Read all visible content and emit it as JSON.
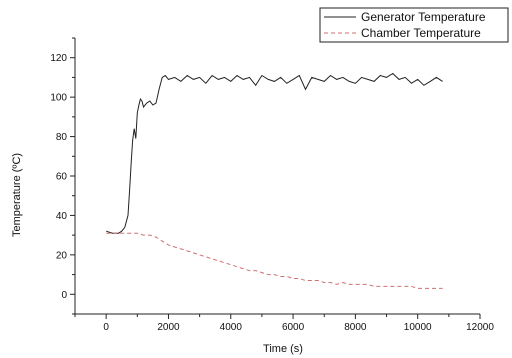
{
  "chart_data": {
    "type": "line",
    "xlabel": "Time (s)",
    "ylabel": "Temperature (ºC)",
    "xlim": [
      -1000,
      12000
    ],
    "ylim": [
      -10,
      130
    ],
    "xticks": [
      0,
      2000,
      4000,
      6000,
      8000,
      10000,
      12000
    ],
    "yticks": [
      0,
      20,
      40,
      60,
      80,
      100,
      120
    ],
    "grid": false,
    "legend_position": "top-right",
    "series": [
      {
        "name": "Generator Temperature",
        "color": "#222222",
        "dash": "solid",
        "x": [
          0,
          200,
          400,
          500,
          600,
          700,
          750,
          800,
          850,
          900,
          950,
          1000,
          1050,
          1100,
          1150,
          1200,
          1300,
          1400,
          1500,
          1600,
          1700,
          1800,
          1900,
          2000,
          2200,
          2400,
          2600,
          2800,
          3000,
          3200,
          3400,
          3600,
          3800,
          4000,
          4200,
          4400,
          4600,
          4800,
          5000,
          5200,
          5400,
          5600,
          5800,
          6000,
          6200,
          6400,
          6600,
          6800,
          7000,
          7200,
          7400,
          7600,
          7800,
          8000,
          8200,
          8400,
          8600,
          8800,
          9000,
          9200,
          9400,
          9600,
          9800,
          10000,
          10200,
          10400,
          10600,
          10800
        ],
        "y": [
          32,
          31,
          31,
          32,
          34,
          40,
          52,
          66,
          78,
          84,
          79,
          92,
          96,
          99,
          98,
          95,
          97,
          98,
          96,
          97,
          104,
          110,
          111,
          109,
          110,
          108,
          111,
          109,
          110,
          107,
          111,
          109,
          110,
          108,
          111,
          109,
          110,
          106,
          111,
          109,
          108,
          110,
          107,
          109,
          111,
          104,
          110,
          109,
          108,
          111,
          109,
          110,
          108,
          107,
          110,
          109,
          108,
          111,
          110,
          112,
          109,
          110,
          107,
          109,
          106,
          108,
          110,
          108
        ]
      },
      {
        "name": "Chamber Temperature",
        "color": "#d07070",
        "dash": "dashed",
        "x": [
          0,
          200,
          400,
          600,
          800,
          1000,
          1200,
          1400,
          1600,
          1800,
          2000,
          2200,
          2400,
          2600,
          2800,
          3000,
          3200,
          3400,
          3600,
          3800,
          4000,
          4200,
          4400,
          4600,
          4800,
          5000,
          5200,
          5400,
          5600,
          5800,
          6000,
          6200,
          6400,
          6600,
          6800,
          7000,
          7200,
          7400,
          7600,
          7800,
          8000,
          8200,
          8400,
          8600,
          8800,
          9000,
          9200,
          9400,
          9600,
          9800,
          10000,
          10200,
          10400,
          10600,
          10800
        ],
        "y": [
          31,
          31,
          31,
          31,
          31,
          31,
          30,
          30,
          29,
          27,
          25,
          24,
          23,
          22,
          21,
          20,
          19,
          18,
          17,
          16,
          15,
          14,
          13,
          12,
          12,
          11,
          10,
          10,
          9,
          9,
          8,
          8,
          7,
          7,
          7,
          6,
          6,
          5,
          6,
          5,
          5,
          5,
          5,
          4,
          4,
          4,
          4,
          4,
          4,
          4,
          3,
          3,
          3,
          3,
          3
        ]
      }
    ]
  }
}
